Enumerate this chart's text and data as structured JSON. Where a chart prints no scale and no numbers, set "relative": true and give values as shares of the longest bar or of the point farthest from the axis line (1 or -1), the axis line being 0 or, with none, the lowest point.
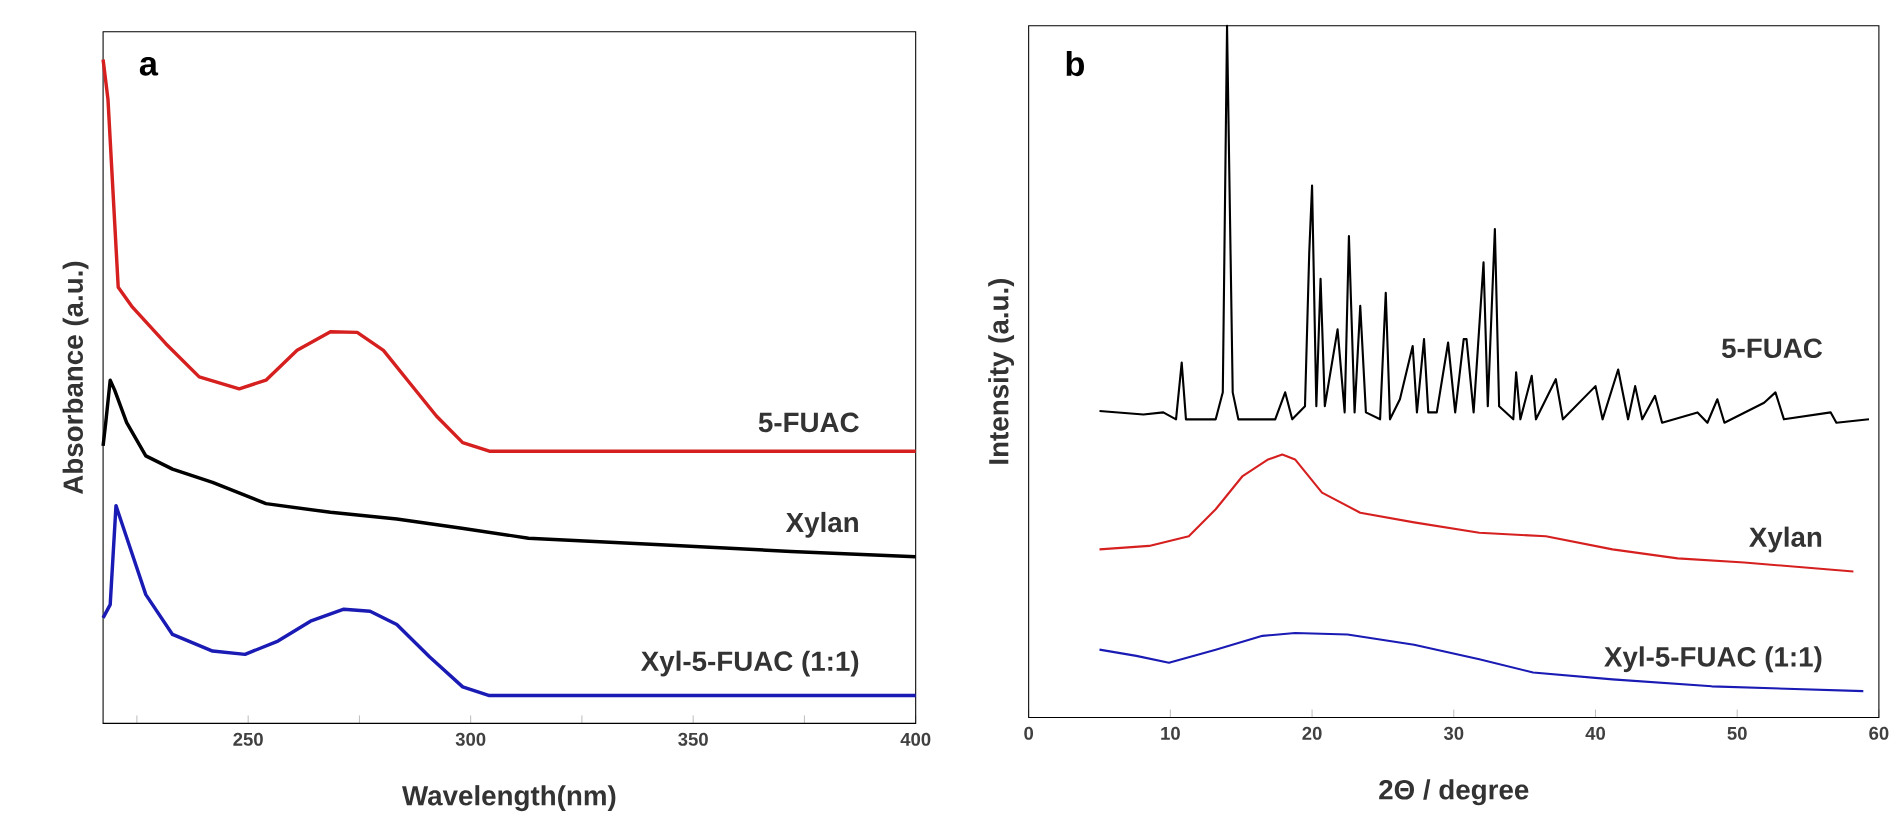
{
  "chart_data": [
    {
      "type": "line",
      "relative": true,
      "xlabel": "Wavelength(nm)",
      "ylabel": "Absorbance (a.u.)",
      "annotations": [
        "a"
      ],
      "xlim": [
        217.4,
        400
      ],
      "xticks": [
        {
          "value": 225,
          "label": null
        },
        250,
        {
          "value": 275,
          "label": null
        },
        300,
        {
          "value": 325,
          "label": null
        },
        350,
        {
          "value": 375,
          "label": null
        },
        400
      ],
      "series": [
        {
          "name": "5-FUAC",
          "color": "#d62020",
          "x": [
            217.4,
            218.5,
            220.8,
            224,
            231.5,
            239,
            248,
            254,
            261,
            268.5,
            274.5,
            280.4,
            286.4,
            292.3,
            298.2,
            304.2,
            400
          ],
          "values": [
            1.0,
            0.94,
            0.657,
            0.627,
            0.572,
            0.522,
            0.504,
            0.517,
            0.562,
            0.59,
            0.589,
            0.562,
            0.512,
            0.463,
            0.423,
            0.41,
            0.41
          ]
        },
        {
          "name": "Xylan",
          "color": "#000000",
          "x": [
            217.4,
            218,
            219,
            220,
            222.7,
            227,
            233,
            242,
            254,
            268.5,
            283.4,
            298,
            313,
            342.7,
            372,
            400
          ],
          "values": [
            0.418,
            0.453,
            0.517,
            0.502,
            0.453,
            0.403,
            0.383,
            0.363,
            0.331,
            0.318,
            0.308,
            0.294,
            0.279,
            0.269,
            0.259,
            0.251
          ]
        },
        {
          "name": "Xyl-5-FUAC (1:1)",
          "color": "#1a1ab4",
          "x": [
            217.4,
            219,
            220.3,
            222,
            227,
            233,
            242,
            249.3,
            256.7,
            264,
            271.5,
            277.4,
            283.4,
            290.8,
            298.2,
            304.2,
            400
          ],
          "values": [
            0.159,
            0.179,
            0.328,
            0.294,
            0.194,
            0.134,
            0.109,
            0.104,
            0.124,
            0.154,
            0.172,
            0.169,
            0.149,
            0.1,
            0.055,
            0.042,
            0.042
          ]
        }
      ]
    },
    {
      "type": "line",
      "relative": true,
      "xlabel": "2Θ / degree",
      "ylabel": "Intensity (a.u.)",
      "annotations": [
        "b"
      ],
      "xlim": [
        0,
        60
      ],
      "xticks": [
        0,
        10,
        20,
        30,
        40,
        50,
        60
      ],
      "series": [
        {
          "name": "5-FUAC",
          "color": "#000000",
          "x": [
            5.0,
            8.1,
            9.5,
            10.4,
            10.8,
            11.1,
            13.2,
            13.7,
            14.0,
            14.4,
            14.8,
            17.4,
            18.1,
            18.6,
            19.5,
            19.8,
            20.0,
            20.3,
            20.6,
            20.9,
            21.8,
            22.3,
            22.6,
            23.0,
            23.4,
            23.8,
            24.8,
            25.2,
            25.5,
            26.2,
            27.1,
            27.4,
            27.9,
            28.2,
            28.8,
            29.6,
            30.1,
            30.7,
            30.9,
            31.4,
            32.1,
            32.4,
            32.9,
            33.2,
            34.2,
            34.4,
            34.7,
            35.5,
            35.8,
            37.2,
            37.7,
            40.0,
            40.5,
            41.6,
            42.3,
            42.8,
            43.3,
            44.2,
            44.7,
            47.2,
            47.9,
            48.6,
            49.1,
            51.9,
            52.7,
            53.3,
            56.6,
            57.0,
            59.3
          ],
          "values": [
            0.443,
            0.438,
            0.441,
            0.431,
            0.513,
            0.431,
            0.431,
            0.47,
            1.0,
            0.47,
            0.431,
            0.431,
            0.47,
            0.431,
            0.45,
            0.672,
            0.769,
            0.45,
            0.634,
            0.45,
            0.561,
            0.441,
            0.696,
            0.441,
            0.595,
            0.441,
            0.431,
            0.614,
            0.431,
            0.46,
            0.537,
            0.441,
            0.547,
            0.441,
            0.441,
            0.542,
            0.441,
            0.547,
            0.547,
            0.441,
            0.658,
            0.45,
            0.706,
            0.45,
            0.431,
            0.499,
            0.431,
            0.494,
            0.431,
            0.489,
            0.431,
            0.479,
            0.431,
            0.503,
            0.431,
            0.479,
            0.431,
            0.465,
            0.426,
            0.441,
            0.426,
            0.46,
            0.426,
            0.455,
            0.47,
            0.431,
            0.441,
            0.426,
            0.431
          ]
        },
        {
          "name": "Xylan",
          "color": "#d62020",
          "x": [
            5.0,
            8.5,
            11.3,
            13.2,
            15.1,
            16.9,
            17.9,
            18.8,
            20.7,
            23.4,
            27.2,
            31.8,
            36.5,
            41.2,
            45.8,
            50.5,
            58.2
          ],
          "values": [
            0.243,
            0.248,
            0.262,
            0.301,
            0.349,
            0.373,
            0.38,
            0.373,
            0.325,
            0.296,
            0.282,
            0.267,
            0.262,
            0.243,
            0.23,
            0.224,
            0.211
          ]
        },
        {
          "name": "Xyl-5-FUAC (1:1)",
          "color": "#1a1ab4",
          "x": [
            5.0,
            7.6,
            9.9,
            13.2,
            16.5,
            18.8,
            22.5,
            27.2,
            31.8,
            35.6,
            41.2,
            48.2,
            58.9
          ],
          "values": [
            0.098,
            0.089,
            0.079,
            0.098,
            0.118,
            0.122,
            0.12,
            0.105,
            0.084,
            0.065,
            0.055,
            0.045,
            0.038
          ]
        }
      ]
    }
  ]
}
